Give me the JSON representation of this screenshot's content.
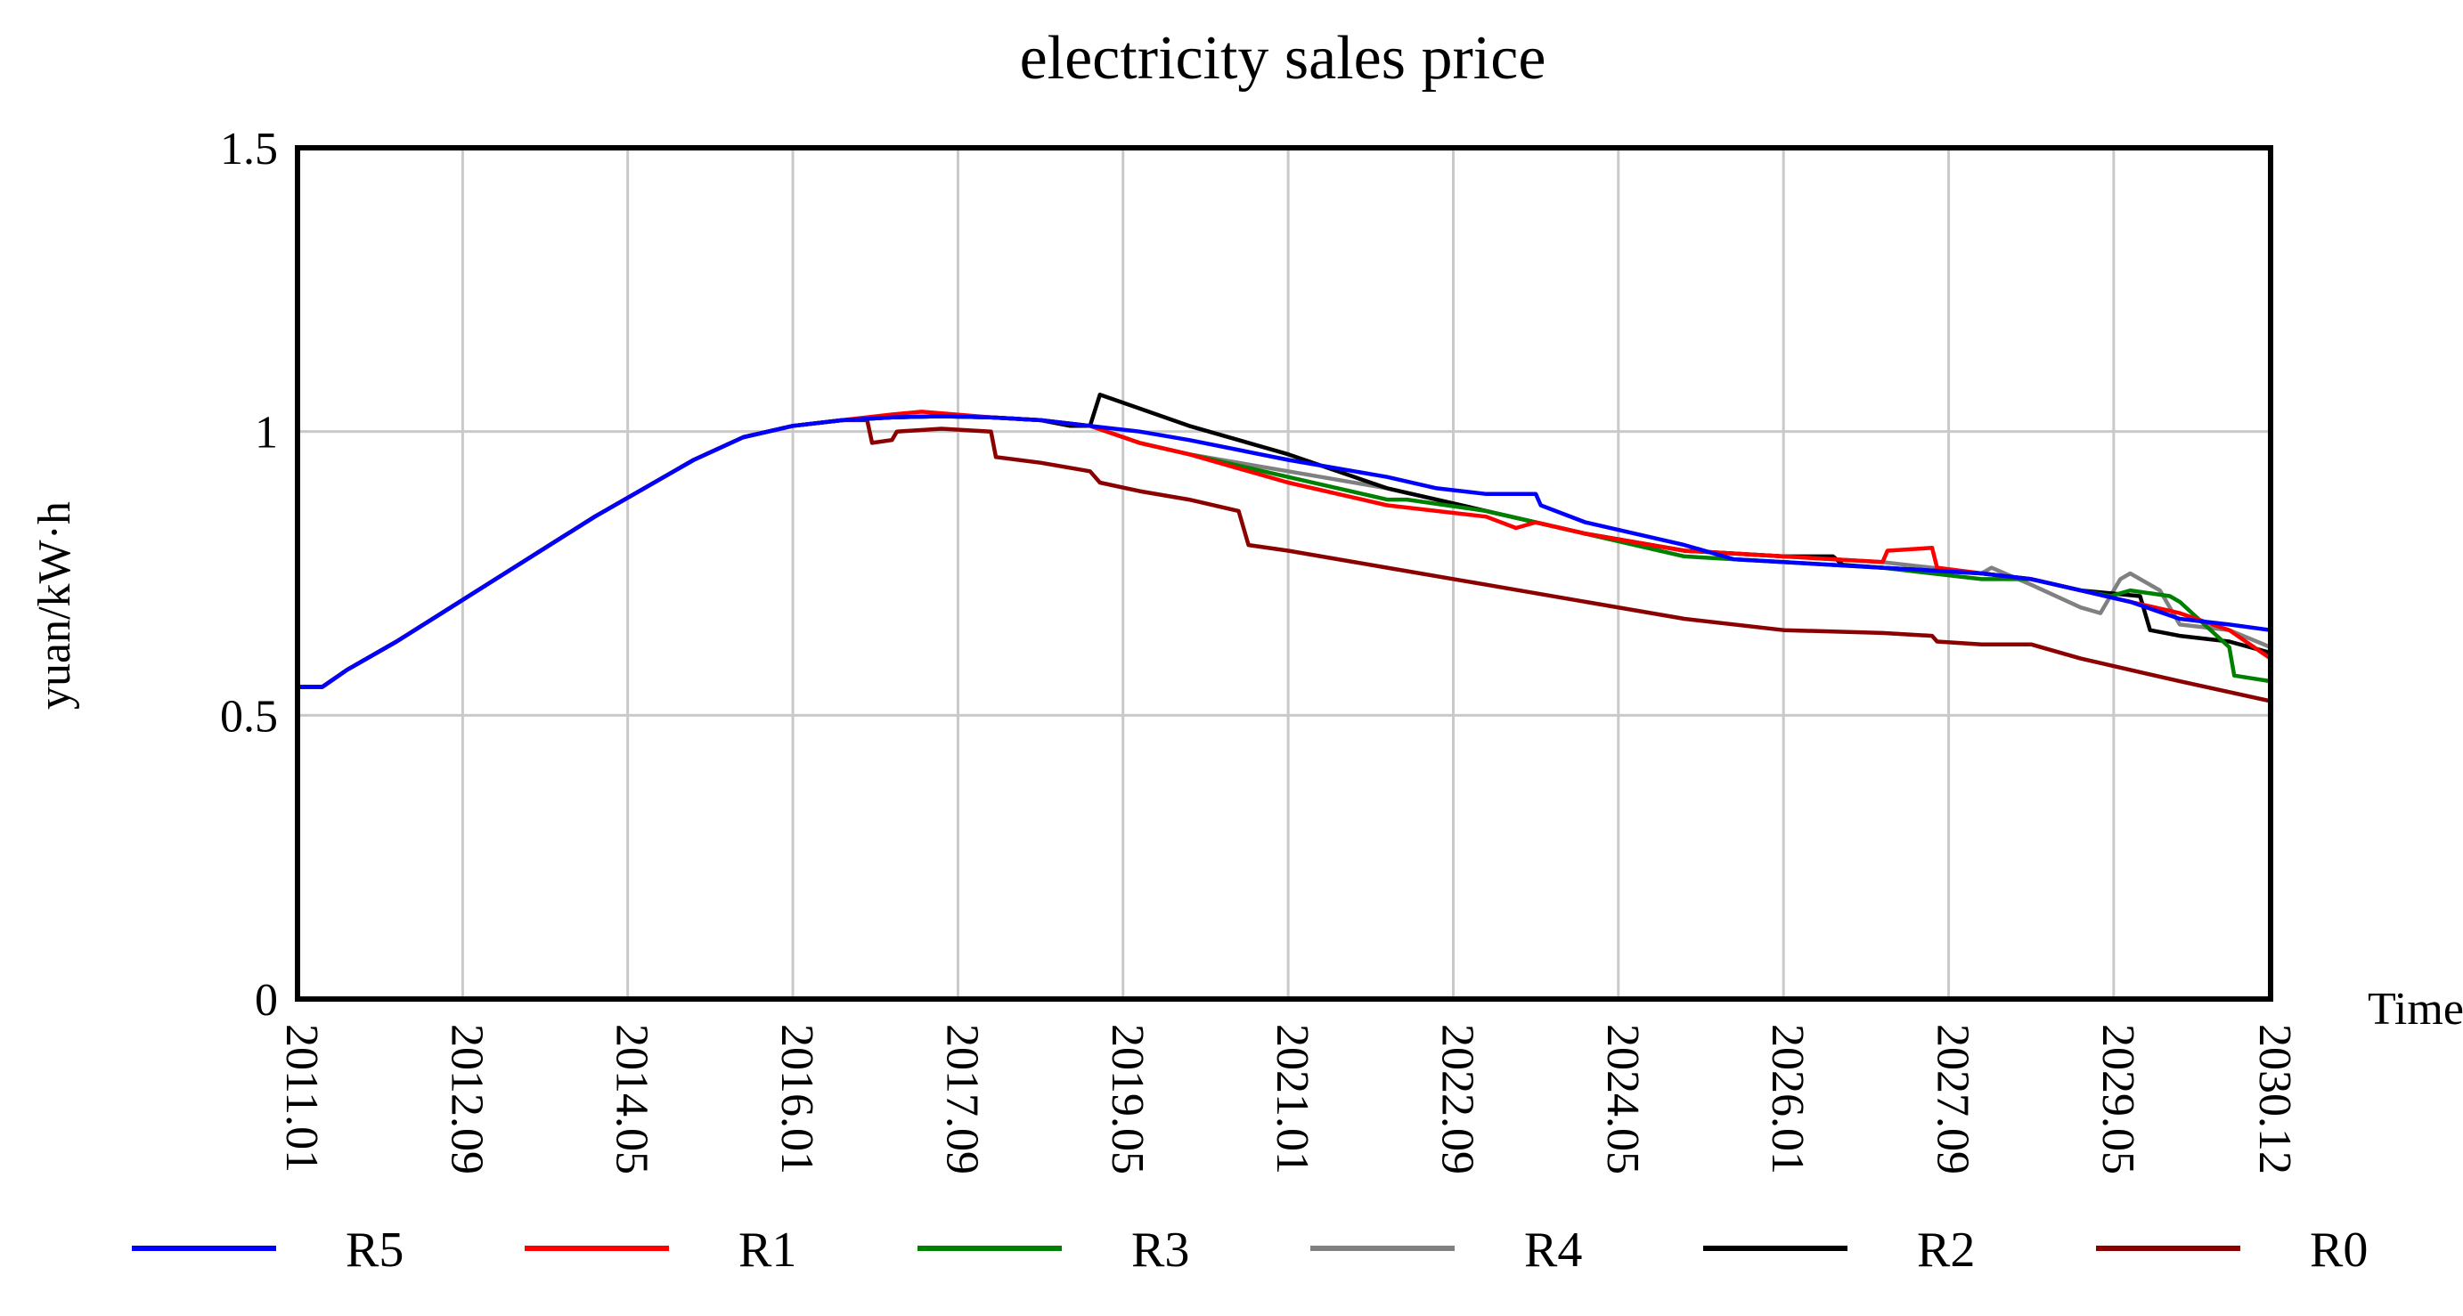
{
  "chart_data": {
    "type": "line",
    "title": "electricity sales price",
    "xlabel": "Time",
    "ylabel": "yuan/kW·h",
    "xlim": [
      2011.0,
      2030.917
    ],
    "ylim": [
      0,
      1.5
    ],
    "y_ticks": [
      {
        "value": 0,
        "label": "0"
      },
      {
        "value": 0.5,
        "label": "0.5"
      },
      {
        "value": 1,
        "label": "1"
      },
      {
        "value": 1.5,
        "label": "1.5"
      }
    ],
    "x_ticks": [
      {
        "value": 2011.0,
        "label": "2011.01"
      },
      {
        "value": 2012.667,
        "label": "2012.09"
      },
      {
        "value": 2014.333,
        "label": "2014.05"
      },
      {
        "value": 2016.0,
        "label": "2016.01"
      },
      {
        "value": 2017.667,
        "label": "2017.09"
      },
      {
        "value": 2019.333,
        "label": "2019.05"
      },
      {
        "value": 2021.0,
        "label": "2021.01"
      },
      {
        "value": 2022.667,
        "label": "2022.09"
      },
      {
        "value": 2024.333,
        "label": "2024.05"
      },
      {
        "value": 2026.0,
        "label": "2026.01"
      },
      {
        "value": 2027.667,
        "label": "2027.09"
      },
      {
        "value": 2029.333,
        "label": "2029.05"
      },
      {
        "value": 2030.917,
        "label": "2030.12"
      }
    ],
    "grid": true,
    "legend_position": "bottom",
    "series": [
      {
        "name": "R5",
        "color": "#0000ff",
        "x": [
          2011.0,
          2011.25,
          2011.5,
          2012.0,
          2013.0,
          2014.0,
          2015.0,
          2015.5,
          2016.0,
          2016.5,
          2017.0,
          2017.5,
          2018.0,
          2018.5,
          2019.0,
          2019.5,
          2020.0,
          2021.0,
          2022.0,
          2022.5,
          2023.0,
          2023.5,
          2023.55,
          2024.0,
          2025.0,
          2025.5,
          2026.0,
          2027.0,
          2028.0,
          2028.5,
          2029.0,
          2029.5,
          2030.0,
          2030.5,
          2030.917
        ],
        "y": [
          0.55,
          0.55,
          0.58,
          0.63,
          0.74,
          0.85,
          0.95,
          0.99,
          1.01,
          1.02,
          1.025,
          1.027,
          1.025,
          1.02,
          1.01,
          1.0,
          0.985,
          0.95,
          0.92,
          0.9,
          0.89,
          0.89,
          0.87,
          0.84,
          0.8,
          0.775,
          0.77,
          0.76,
          0.75,
          0.74,
          0.72,
          0.7,
          0.67,
          0.66,
          0.65
        ]
      },
      {
        "name": "R1",
        "color": "#ff0000",
        "x": [
          2011.0,
          2011.25,
          2011.5,
          2012.0,
          2013.0,
          2014.0,
          2015.0,
          2015.5,
          2016.0,
          2016.5,
          2017.0,
          2017.3,
          2018.0,
          2018.5,
          2019.0,
          2019.5,
          2020.0,
          2021.0,
          2022.0,
          2023.0,
          2023.3,
          2023.5,
          2024.0,
          2025.0,
          2026.0,
          2027.0,
          2027.05,
          2027.5,
          2027.55,
          2028.0,
          2028.5,
          2029.0,
          2029.5,
          2030.0,
          2030.5,
          2030.917
        ],
        "y": [
          0.55,
          0.55,
          0.58,
          0.63,
          0.74,
          0.85,
          0.95,
          0.99,
          1.01,
          1.02,
          1.03,
          1.035,
          1.025,
          1.02,
          1.01,
          0.98,
          0.96,
          0.91,
          0.87,
          0.85,
          0.83,
          0.84,
          0.82,
          0.79,
          0.78,
          0.77,
          0.79,
          0.795,
          0.76,
          0.75,
          0.74,
          0.72,
          0.7,
          0.68,
          0.65,
          0.6
        ]
      },
      {
        "name": "R3",
        "color": "#008000",
        "x": [
          2011.0,
          2011.25,
          2011.5,
          2012.0,
          2013.0,
          2014.0,
          2015.0,
          2015.5,
          2016.0,
          2016.5,
          2017.0,
          2017.5,
          2018.0,
          2018.5,
          2019.0,
          2019.5,
          2020.0,
          2021.0,
          2022.0,
          2022.2,
          2023.0,
          2024.0,
          2025.0,
          2026.0,
          2027.0,
          2028.0,
          2028.5,
          2029.0,
          2029.3,
          2029.5,
          2029.9,
          2030.0,
          2030.5,
          2030.55,
          2030.917
        ],
        "y": [
          0.55,
          0.55,
          0.58,
          0.63,
          0.74,
          0.85,
          0.95,
          0.99,
          1.01,
          1.02,
          1.025,
          1.027,
          1.025,
          1.02,
          1.01,
          0.98,
          0.96,
          0.92,
          0.88,
          0.88,
          0.86,
          0.82,
          0.78,
          0.77,
          0.76,
          0.74,
          0.74,
          0.72,
          0.71,
          0.72,
          0.71,
          0.7,
          0.62,
          0.57,
          0.56
        ]
      },
      {
        "name": "R4",
        "color": "#808080",
        "x": [
          2011.0,
          2011.25,
          2011.5,
          2012.0,
          2013.0,
          2014.0,
          2015.0,
          2015.5,
          2016.0,
          2016.5,
          2017.0,
          2017.5,
          2018.0,
          2018.5,
          2019.0,
          2019.5,
          2020.0,
          2021.0,
          2022.0,
          2023.0,
          2024.0,
          2025.0,
          2026.0,
          2027.0,
          2028.0,
          2028.1,
          2028.5,
          2029.0,
          2029.2,
          2029.4,
          2029.5,
          2029.8,
          2030.0,
          2030.5,
          2030.917
        ],
        "y": [
          0.55,
          0.55,
          0.58,
          0.63,
          0.74,
          0.85,
          0.95,
          0.99,
          1.01,
          1.02,
          1.025,
          1.027,
          1.025,
          1.02,
          1.01,
          0.98,
          0.96,
          0.93,
          0.9,
          0.86,
          0.82,
          0.79,
          0.78,
          0.77,
          0.75,
          0.76,
          0.73,
          0.69,
          0.68,
          0.74,
          0.75,
          0.72,
          0.66,
          0.65,
          0.62
        ]
      },
      {
        "name": "R2",
        "color": "#000000",
        "x": [
          2011.0,
          2011.25,
          2011.5,
          2012.0,
          2013.0,
          2014.0,
          2015.0,
          2015.5,
          2016.0,
          2016.5,
          2017.0,
          2017.5,
          2018.0,
          2018.5,
          2018.8,
          2019.0,
          2019.1,
          2020.0,
          2021.0,
          2022.0,
          2023.0,
          2024.0,
          2025.0,
          2026.0,
          2026.5,
          2026.6,
          2027.0,
          2028.0,
          2028.5,
          2029.0,
          2029.6,
          2029.7,
          2030.0,
          2030.5,
          2030.917
        ],
        "y": [
          0.55,
          0.55,
          0.58,
          0.63,
          0.74,
          0.85,
          0.95,
          0.99,
          1.01,
          1.02,
          1.025,
          1.027,
          1.025,
          1.02,
          1.01,
          1.01,
          1.065,
          1.01,
          0.96,
          0.9,
          0.86,
          0.82,
          0.79,
          0.78,
          0.78,
          0.765,
          0.76,
          0.75,
          0.74,
          0.72,
          0.71,
          0.65,
          0.64,
          0.63,
          0.61
        ]
      },
      {
        "name": "R0",
        "color": "#8b0000",
        "x": [
          2011.0,
          2011.25,
          2011.5,
          2012.0,
          2013.0,
          2014.0,
          2015.0,
          2015.5,
          2016.0,
          2016.5,
          2016.75,
          2016.8,
          2017.0,
          2017.05,
          2017.5,
          2018.0,
          2018.05,
          2018.5,
          2019.0,
          2019.1,
          2019.5,
          2020.0,
          2020.5,
          2020.6,
          2021.0,
          2022.0,
          2023.0,
          2024.0,
          2025.0,
          2026.0,
          2027.0,
          2027.5,
          2027.55,
          2028.0,
          2028.5,
          2029.0,
          2030.0,
          2030.917
        ],
        "y": [
          0.55,
          0.55,
          0.58,
          0.63,
          0.74,
          0.85,
          0.95,
          0.99,
          1.01,
          1.02,
          1.02,
          0.98,
          0.985,
          1.0,
          1.005,
          1.0,
          0.955,
          0.945,
          0.93,
          0.91,
          0.895,
          0.88,
          0.86,
          0.8,
          0.79,
          0.76,
          0.73,
          0.7,
          0.67,
          0.65,
          0.645,
          0.64,
          0.63,
          0.625,
          0.625,
          0.6,
          0.56,
          0.525
        ]
      }
    ]
  }
}
